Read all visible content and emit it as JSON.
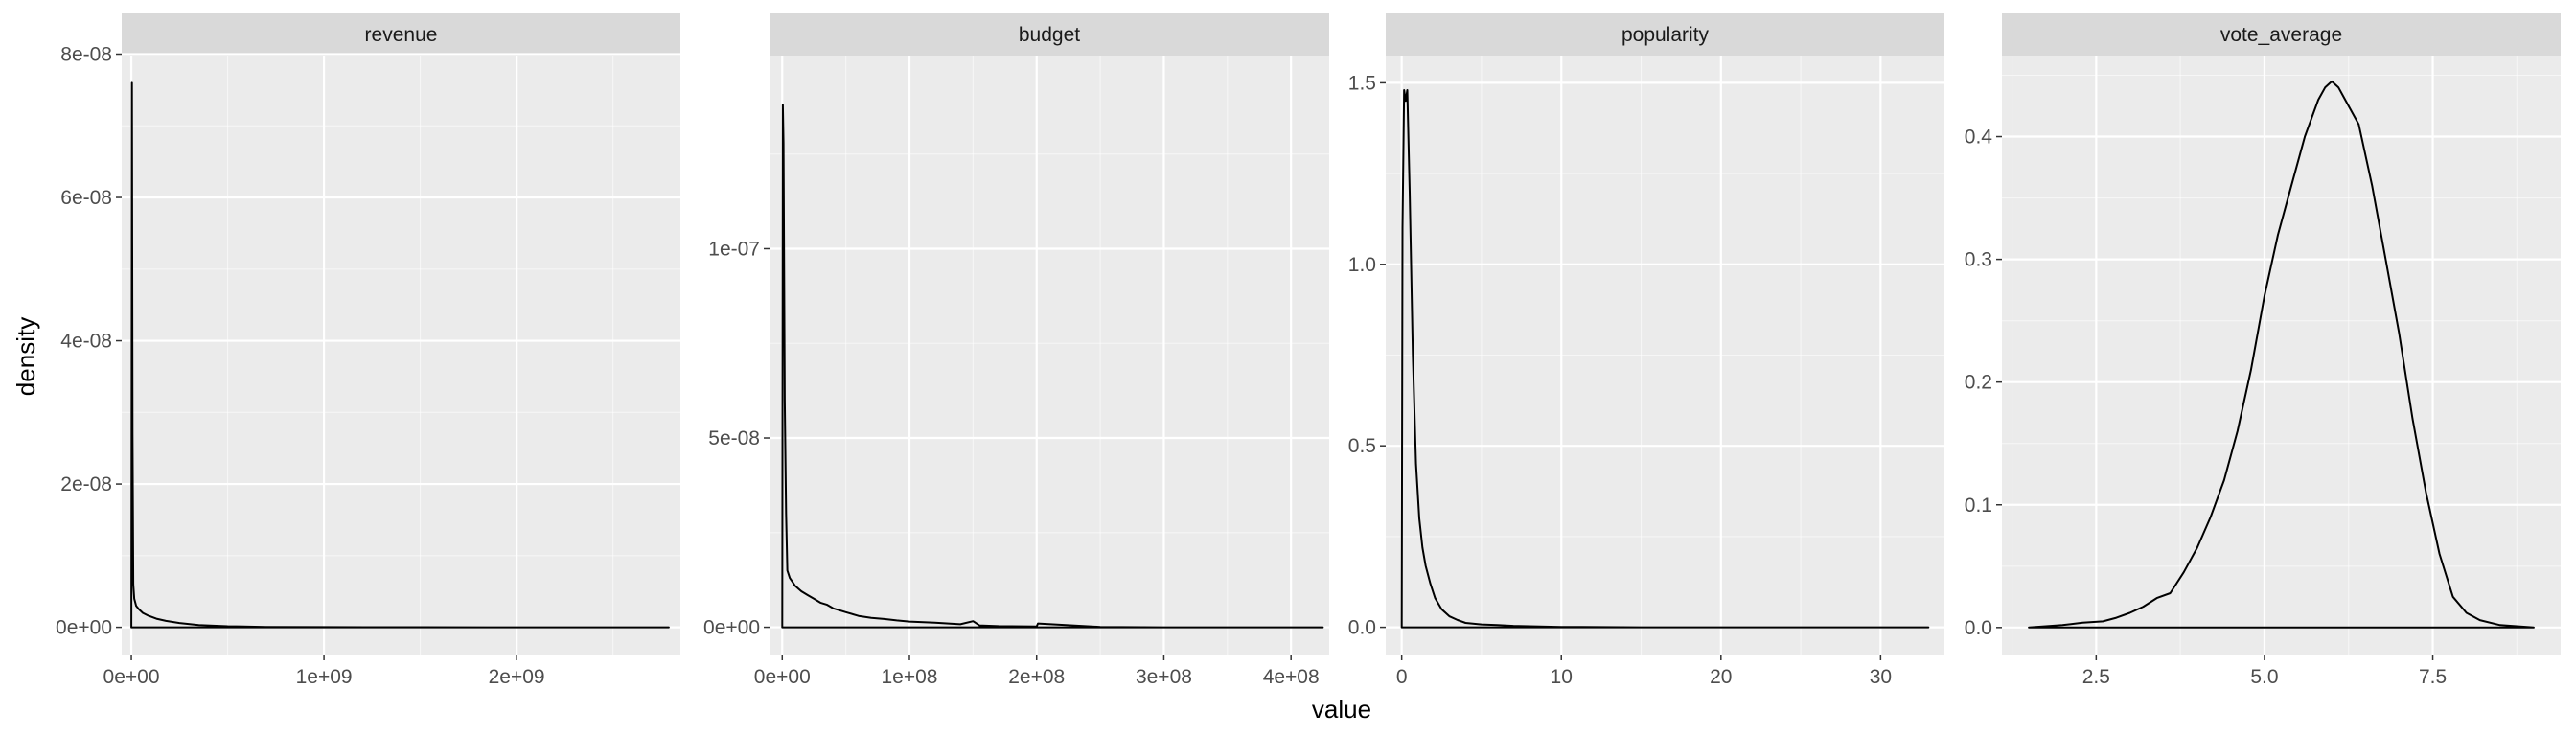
{
  "chart_data": {
    "type": "line",
    "subtype": "faceted-density",
    "xlabel": "value",
    "ylabel": "density",
    "grid": true,
    "legend": "none",
    "colors": {
      "panel_background": "#ebebeb",
      "strip_background": "#d9d9d9",
      "grid_major": "#ffffff",
      "line": "#000000",
      "tick_text": "#4d4d4d"
    },
    "facets": [
      {
        "name": "revenue",
        "xlim": [
          -50000000,
          2850000000
        ],
        "ylim": [
          -3.8e-09,
          7.98e-08
        ],
        "x_ticks": [
          0,
          1000000000,
          2000000000
        ],
        "x_tick_labels": [
          "0e+00",
          "1e+09",
          "2e+09"
        ],
        "y_ticks": [
          0,
          2e-08,
          4e-08,
          6e-08,
          8e-08
        ],
        "y_tick_labels": [
          "0e+00",
          "2e-08",
          "4e-08",
          "6e-08",
          "8e-08"
        ],
        "x": [
          0,
          3000000,
          6000000,
          10000000,
          15000000,
          25000000,
          40000000,
          60000000,
          90000000,
          130000000,
          180000000,
          250000000,
          350000000,
          500000000,
          700000000,
          1000000000,
          1500000000,
          2000000000,
          2500000000,
          2790000000
        ],
        "y": [
          0,
          7.6e-08,
          2.7e-08,
          6e-09,
          4e-09,
          3e-09,
          2.5e-09,
          2e-09,
          1.6e-09,
          1.2e-09,
          9e-10,
          6e-10,
          3e-10,
          1.5e-10,
          5e-11,
          2e-11,
          1e-11,
          0,
          0,
          0
        ]
      },
      {
        "name": "budget",
        "xlim": [
          -10000000,
          430000000
        ],
        "ylim": [
          -7.2e-09,
          1.51e-07
        ],
        "x_ticks": [
          0,
          100000000,
          200000000,
          300000000,
          400000000
        ],
        "x_tick_labels": [
          "0e+00",
          "1e+08",
          "2e+08",
          "3e+08",
          "4e+08"
        ],
        "y_ticks": [
          0,
          5e-08,
          1e-07
        ],
        "y_tick_labels": [
          "0e+00",
          "5e-08",
          "1e-07"
        ],
        "x": [
          0,
          500000,
          1000000,
          2000000,
          3000000,
          4000000,
          6000000,
          8000000,
          10000000,
          15000000,
          20000000,
          25000000,
          30000000,
          35000000,
          40000000,
          45000000,
          50000000,
          60000000,
          70000000,
          80000000,
          90000000,
          100000000,
          120000000,
          140000000,
          150000000,
          155000000,
          170000000,
          200000000,
          201000000,
          250000000,
          300000000,
          380000000,
          425000000
        ],
        "y": [
          0,
          1.38e-07,
          1.28e-07,
          6e-08,
          3e-08,
          1.5e-08,
          1.3e-08,
          1.2e-08,
          1.1e-08,
          9.5e-09,
          8.5e-09,
          7.5e-09,
          6.5e-09,
          6e-09,
          5e-09,
          4.5e-09,
          4e-09,
          3e-09,
          2.5e-09,
          2.2e-09,
          1.8e-09,
          1.5e-09,
          1.2e-09,
          8e-10,
          1.6e-09,
          5e-10,
          3e-10,
          2e-10,
          1e-09,
          1e-10,
          0,
          0,
          0
        ]
      },
      {
        "name": "popularity",
        "xlim": [
          -1,
          34
        ],
        "ylim": [
          -0.075,
          1.575
        ],
        "x_ticks": [
          0,
          10,
          20,
          30
        ],
        "x_tick_labels": [
          "0",
          "10",
          "20",
          "30"
        ],
        "y_ticks": [
          0,
          0.5,
          1.0,
          1.5
        ],
        "y_tick_labels": [
          "0.0",
          "0.5",
          "1.0",
          "1.5"
        ],
        "x": [
          0,
          0.05,
          0.15,
          0.25,
          0.35,
          0.5,
          0.7,
          0.9,
          1.1,
          1.3,
          1.5,
          1.8,
          2.1,
          2.5,
          3.0,
          3.5,
          4.0,
          5.0,
          6.0,
          7.0,
          8.0,
          10,
          15,
          20,
          25,
          30,
          33
        ],
        "y": [
          0,
          1.1,
          1.48,
          1.45,
          1.48,
          1.2,
          0.75,
          0.45,
          0.3,
          0.22,
          0.17,
          0.12,
          0.08,
          0.05,
          0.03,
          0.02,
          0.012,
          0.008,
          0.006,
          0.004,
          0.003,
          0.001,
          0,
          0,
          0,
          0,
          0
        ]
      },
      {
        "name": "vote_average",
        "xlim": [
          1.1,
          9.4
        ],
        "ylim": [
          -0.022,
          0.466
        ],
        "x_ticks": [
          2.5,
          5.0,
          7.5
        ],
        "x_tick_labels": [
          "2.5",
          "5.0",
          "7.5"
        ],
        "y_ticks": [
          0.0,
          0.1,
          0.2,
          0.3,
          0.4
        ],
        "y_tick_labels": [
          "0.0",
          "0.1",
          "0.2",
          "0.3",
          "0.4"
        ],
        "x": [
          1.5,
          2.0,
          2.3,
          2.6,
          2.8,
          3.0,
          3.2,
          3.4,
          3.6,
          3.8,
          4.0,
          4.2,
          4.4,
          4.6,
          4.8,
          5.0,
          5.2,
          5.4,
          5.6,
          5.8,
          5.9,
          6.0,
          6.1,
          6.2,
          6.4,
          6.6,
          6.8,
          7.0,
          7.2,
          7.4,
          7.6,
          7.8,
          8.0,
          8.2,
          8.5,
          9.0
        ],
        "y": [
          0,
          0.002,
          0.004,
          0.005,
          0.008,
          0.012,
          0.017,
          0.024,
          0.028,
          0.045,
          0.065,
          0.09,
          0.12,
          0.16,
          0.21,
          0.27,
          0.32,
          0.36,
          0.4,
          0.43,
          0.44,
          0.445,
          0.44,
          0.43,
          0.41,
          0.36,
          0.3,
          0.24,
          0.17,
          0.11,
          0.06,
          0.025,
          0.012,
          0.006,
          0.002,
          0.0
        ]
      }
    ]
  }
}
